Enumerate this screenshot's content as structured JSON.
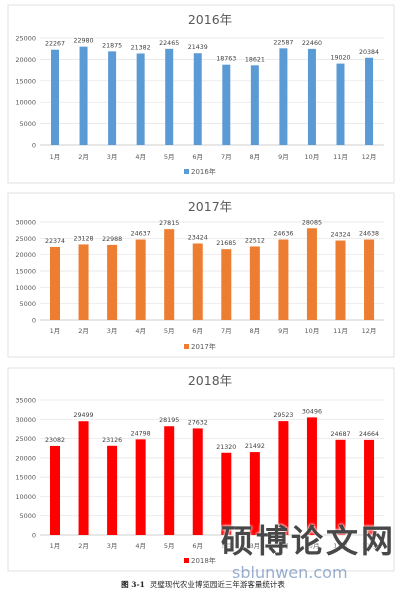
{
  "caption": {
    "label": "图 3-1",
    "text": "灵璧现代农业博览园近三年游客量统计表"
  },
  "watermark": {
    "text": "硕博论文网",
    "site": "sblunwen.com"
  },
  "chart_data": [
    {
      "type": "bar",
      "title": "2016年",
      "xlabel": "",
      "ylabel": "",
      "categories": [
        "1月",
        "2月",
        "3月",
        "4月",
        "5月",
        "6月",
        "7月",
        "8月",
        "9月",
        "10月",
        "11月",
        "12月"
      ],
      "series": [
        {
          "name": "2016年",
          "color": "#5b9bd5",
          "values": [
            22267,
            22980,
            21875,
            21382,
            22465,
            21439,
            18763,
            18621,
            22587,
            22460,
            19020,
            20384
          ]
        }
      ],
      "ylim": [
        0,
        25000
      ],
      "yticks": [
        0,
        5000,
        10000,
        15000,
        20000,
        25000
      ],
      "grid": true,
      "legend": "bottom"
    },
    {
      "type": "bar",
      "title": "2017年",
      "xlabel": "",
      "ylabel": "",
      "categories": [
        "1月",
        "2月",
        "3月",
        "4月",
        "5月",
        "6月",
        "7月",
        "8月",
        "9月",
        "10月",
        "11月",
        "12月"
      ],
      "series": [
        {
          "name": "2017年",
          "color": "#ed7d31",
          "values": [
            22374,
            23128,
            22988,
            24637,
            27815,
            23424,
            21685,
            22512,
            24636,
            28085,
            24324,
            24638
          ]
        }
      ],
      "ylim": [
        0,
        30000
      ],
      "yticks": [
        0,
        5000,
        10000,
        15000,
        20000,
        25000,
        30000
      ],
      "grid": true,
      "legend": "bottom"
    },
    {
      "type": "bar",
      "title": "2018年",
      "xlabel": "",
      "ylabel": "",
      "categories": [
        "1月",
        "2月",
        "3月",
        "4月",
        "5月",
        "6月",
        "7月",
        "8月",
        "9月",
        "10月",
        "11月",
        "12月"
      ],
      "series": [
        {
          "name": "2018年",
          "color": "#ff0000",
          "values": [
            23082,
            29499,
            23126,
            24798,
            28195,
            27632,
            21320,
            21492,
            29523,
            30496,
            24687,
            24664
          ]
        }
      ],
      "ylim": [
        0,
        35000
      ],
      "yticks": [
        0,
        5000,
        10000,
        15000,
        20000,
        25000,
        30000,
        35000
      ],
      "grid": true,
      "legend": "bottom"
    }
  ]
}
